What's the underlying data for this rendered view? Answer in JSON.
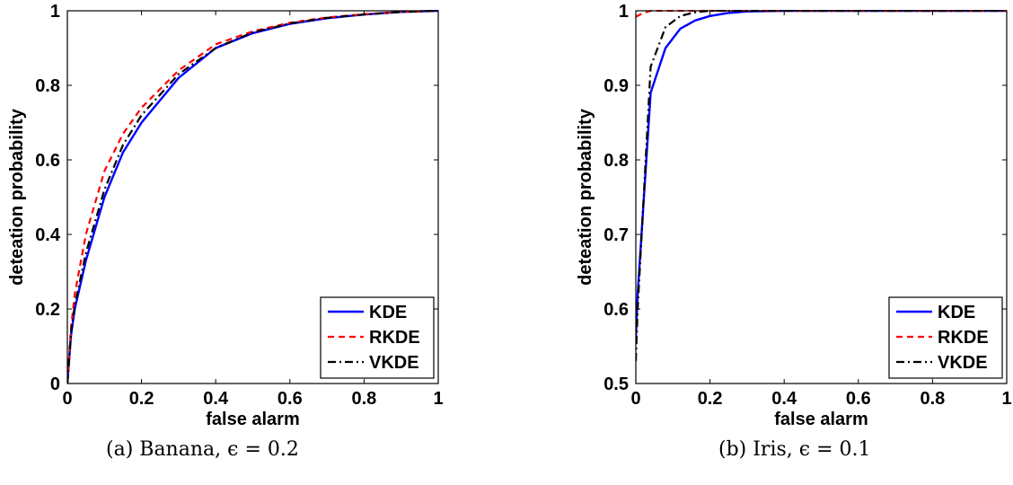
{
  "captions": [
    {
      "label": "(a) Banana, ",
      "eq": "ϵ = 0.2"
    },
    {
      "label": "(b) Iris, ",
      "eq": "ϵ = 0.1"
    }
  ],
  "colors": {
    "KDE": "#0000ff",
    "RKDE": "#ff0000",
    "VKDE": "#000000"
  },
  "chart_data": [
    {
      "type": "line",
      "title": "",
      "xlabel": "false alarm",
      "ylabel": "deteation probability",
      "xlim": [
        0,
        1
      ],
      "ylim": [
        0,
        1
      ],
      "xticks": [
        0,
        0.2,
        0.4,
        0.6,
        0.8,
        1
      ],
      "xtick_labels": [
        "0",
        "0.2",
        "0.4",
        "0.6",
        "0.8",
        "1"
      ],
      "yticks": [
        0,
        0.2,
        0.4,
        0.6,
        0.8,
        1
      ],
      "ytick_labels": [
        "0",
        "0.2",
        "0.4",
        "0.6",
        "0.8",
        "1"
      ],
      "grid": false,
      "legend": "bottom-right",
      "series": [
        {
          "name": "KDE",
          "style": "solid",
          "x": [
            0,
            0.01,
            0.02,
            0.05,
            0.1,
            0.15,
            0.2,
            0.3,
            0.4,
            0.5,
            0.6,
            0.7,
            0.8,
            0.9,
            1
          ],
          "y": [
            0,
            0.13,
            0.2,
            0.33,
            0.5,
            0.62,
            0.7,
            0.82,
            0.9,
            0.94,
            0.965,
            0.98,
            0.99,
            0.997,
            1
          ]
        },
        {
          "name": "RKDE",
          "style": "dashed",
          "x": [
            0,
            0.01,
            0.02,
            0.05,
            0.1,
            0.15,
            0.2,
            0.3,
            0.4,
            0.5,
            0.6,
            0.7,
            0.8,
            0.9,
            1
          ],
          "y": [
            0,
            0.15,
            0.24,
            0.4,
            0.57,
            0.67,
            0.74,
            0.84,
            0.91,
            0.945,
            0.968,
            0.982,
            0.991,
            0.997,
            1
          ]
        },
        {
          "name": "VKDE",
          "style": "dashdot",
          "x": [
            0,
            0.01,
            0.02,
            0.05,
            0.1,
            0.15,
            0.2,
            0.3,
            0.4,
            0.5,
            0.6,
            0.7,
            0.8,
            0.9,
            1
          ],
          "y": [
            0,
            0.14,
            0.21,
            0.35,
            0.52,
            0.64,
            0.72,
            0.83,
            0.9,
            0.942,
            0.966,
            0.981,
            0.99,
            0.997,
            1
          ]
        }
      ]
    },
    {
      "type": "line",
      "title": "",
      "xlabel": "false alarm",
      "ylabel": "deteation probability",
      "xlim": [
        0,
        1
      ],
      "ylim": [
        0.5,
        1
      ],
      "xticks": [
        0,
        0.2,
        0.4,
        0.6,
        0.8,
        1
      ],
      "xtick_labels": [
        "0",
        "0.2",
        "0.4",
        "0.6",
        "0.8",
        "1"
      ],
      "yticks": [
        0.5,
        0.6,
        0.7,
        0.8,
        0.9,
        1
      ],
      "ytick_labels": [
        "0.5",
        "0.6",
        "0.7",
        "0.8",
        "0.9",
        "1"
      ],
      "grid": false,
      "legend": "bottom-right",
      "series": [
        {
          "name": "KDE",
          "style": "solid",
          "x": [
            0,
            0.005,
            0.04,
            0.08,
            0.12,
            0.16,
            0.2,
            0.25,
            0.3,
            0.4,
            1
          ],
          "y": [
            0.56,
            0.62,
            0.89,
            0.95,
            0.976,
            0.987,
            0.993,
            0.997,
            0.999,
            1,
            1
          ]
        },
        {
          "name": "RKDE",
          "style": "dashed",
          "x": [
            0,
            0.02,
            0.04,
            0.1,
            1
          ],
          "y": [
            0.992,
            0.997,
            1,
            1,
            1
          ]
        },
        {
          "name": "VKDE",
          "style": "dashdot",
          "x": [
            0,
            0.005,
            0.04,
            0.08,
            0.12,
            0.16,
            0.2,
            0.25,
            1
          ],
          "y": [
            0.53,
            0.6,
            0.925,
            0.978,
            0.993,
            0.998,
            1,
            1,
            1
          ]
        }
      ]
    }
  ]
}
